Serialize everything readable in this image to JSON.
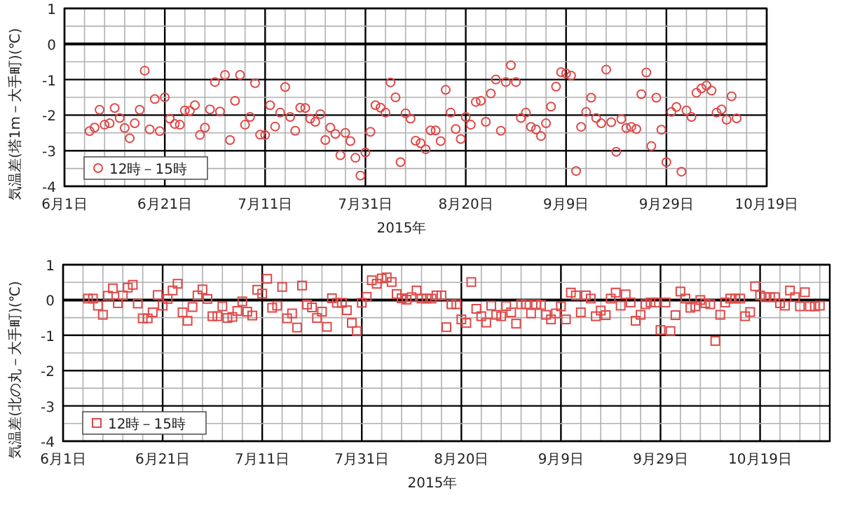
{
  "chart_data": [
    {
      "type": "scatter",
      "xlabel": "2015年",
      "ylabel": "気温差(塔1m－大手町)(℃)",
      "legend": "bottom left",
      "grid": true,
      "marker": "circle",
      "xlim": [
        "2015-06-01",
        "2015-10-19"
      ],
      "xticks": [
        {
          "value": "2015-06-01",
          "label": "6月1日"
        },
        {
          "value": "2015-06-05",
          "label": null
        },
        {
          "value": "2015-06-09",
          "label": null
        },
        {
          "value": "2015-06-13",
          "label": null
        },
        {
          "value": "2015-06-17",
          "label": null
        },
        {
          "value": "2015-06-21",
          "label": "6月21日"
        },
        {
          "value": "2015-06-25",
          "label": null
        },
        {
          "value": "2015-06-29",
          "label": null
        },
        {
          "value": "2015-07-03",
          "label": null
        },
        {
          "value": "2015-07-07",
          "label": null
        },
        {
          "value": "2015-07-11",
          "label": "7月11日"
        },
        {
          "value": "2015-07-15",
          "label": null
        },
        {
          "value": "2015-07-19",
          "label": null
        },
        {
          "value": "2015-07-23",
          "label": null
        },
        {
          "value": "2015-07-27",
          "label": null
        },
        {
          "value": "2015-07-31",
          "label": "7月31日"
        },
        {
          "value": "2015-08-04",
          "label": null
        },
        {
          "value": "2015-08-08",
          "label": null
        },
        {
          "value": "2015-08-12",
          "label": null
        },
        {
          "value": "2015-08-16",
          "label": null
        },
        {
          "value": "2015-08-20",
          "label": "8月20日"
        },
        {
          "value": "2015-08-24",
          "label": null
        },
        {
          "value": "2015-08-28",
          "label": null
        },
        {
          "value": "2015-09-01",
          "label": null
        },
        {
          "value": "2015-09-05",
          "label": null
        },
        {
          "value": "2015-09-09",
          "label": "9月9日"
        },
        {
          "value": "2015-09-13",
          "label": null
        },
        {
          "value": "2015-09-17",
          "label": null
        },
        {
          "value": "2015-09-21",
          "label": null
        },
        {
          "value": "2015-09-25",
          "label": null
        },
        {
          "value": "2015-09-29",
          "label": "9月29日"
        },
        {
          "value": "2015-10-03",
          "label": null
        },
        {
          "value": "2015-10-07",
          "label": null
        },
        {
          "value": "2015-10-11",
          "label": null
        },
        {
          "value": "2015-10-15",
          "label": null
        },
        {
          "value": "2015-10-19",
          "label": "10月19日"
        }
      ],
      "ylim": [
        -4,
        1
      ],
      "yticks": [
        -4,
        {
          "value": -3.5,
          "label": null
        },
        -3,
        {
          "value": -2.5,
          "label": null
        },
        -2,
        {
          "value": -1.5,
          "label": null
        },
        -1,
        {
          "value": -0.5,
          "label": null
        },
        0,
        {
          "value": 0.5,
          "label": null
        },
        1
      ],
      "ref_lines": [
        {
          "axis": "y",
          "value": 0,
          "color": "#000000"
        }
      ],
      "series": [
        {
          "name": "12時－15時",
          "color": "#e04848",
          "x": [
            "2015-06-06",
            "2015-06-07",
            "2015-06-08",
            "2015-06-09",
            "2015-06-10",
            "2015-06-11",
            "2015-06-12",
            "2015-06-13",
            "2015-06-14",
            "2015-06-15",
            "2015-06-16",
            "2015-06-17",
            "2015-06-18",
            "2015-06-19",
            "2015-06-20",
            "2015-06-21",
            "2015-06-22",
            "2015-06-23",
            "2015-06-24",
            "2015-06-25",
            "2015-06-26",
            "2015-06-27",
            "2015-06-28",
            "2015-06-29",
            "2015-06-30",
            "2015-07-01",
            "2015-07-02",
            "2015-07-03",
            "2015-07-04",
            "2015-07-05",
            "2015-07-06",
            "2015-07-07",
            "2015-07-08",
            "2015-07-09",
            "2015-07-10",
            "2015-07-11",
            "2015-07-12",
            "2015-07-13",
            "2015-07-14",
            "2015-07-15",
            "2015-07-16",
            "2015-07-17",
            "2015-07-18",
            "2015-07-19",
            "2015-07-20",
            "2015-07-21",
            "2015-07-22",
            "2015-07-23",
            "2015-07-24",
            "2015-07-25",
            "2015-07-26",
            "2015-07-27",
            "2015-07-28",
            "2015-07-29",
            "2015-07-30",
            "2015-07-31",
            "2015-08-01",
            "2015-08-02",
            "2015-08-03",
            "2015-08-04",
            "2015-08-05",
            "2015-08-06",
            "2015-08-07",
            "2015-08-08",
            "2015-08-09",
            "2015-08-10",
            "2015-08-11",
            "2015-08-12",
            "2015-08-13",
            "2015-08-14",
            "2015-08-15",
            "2015-08-16",
            "2015-08-17",
            "2015-08-18",
            "2015-08-19",
            "2015-08-20",
            "2015-08-21",
            "2015-08-22",
            "2015-08-23",
            "2015-08-24",
            "2015-08-25",
            "2015-08-26",
            "2015-08-27",
            "2015-08-28",
            "2015-08-29",
            "2015-08-30",
            "2015-08-31",
            "2015-09-01",
            "2015-09-02",
            "2015-09-03",
            "2015-09-04",
            "2015-09-05",
            "2015-09-06",
            "2015-09-07",
            "2015-09-08",
            "2015-09-09",
            "2015-09-10",
            "2015-09-11",
            "2015-09-12",
            "2015-09-13",
            "2015-09-14",
            "2015-09-15",
            "2015-09-16",
            "2015-09-17",
            "2015-09-18",
            "2015-09-19",
            "2015-09-20",
            "2015-09-21",
            "2015-09-22",
            "2015-09-23",
            "2015-09-24",
            "2015-09-25",
            "2015-09-26",
            "2015-09-27",
            "2015-09-28",
            "2015-09-29",
            "2015-09-30",
            "2015-10-01",
            "2015-10-02",
            "2015-10-03",
            "2015-10-04",
            "2015-10-05",
            "2015-10-06",
            "2015-10-07",
            "2015-10-08",
            "2015-10-09",
            "2015-10-10",
            "2015-10-11",
            "2015-10-12",
            "2015-10-13"
          ],
          "values": [
            -2.45,
            -2.35,
            -1.85,
            -2.27,
            -2.23,
            -1.8,
            -2.08,
            -2.36,
            -2.65,
            -2.23,
            -1.85,
            -0.75,
            -2.4,
            -1.55,
            -2.45,
            -1.5,
            -2.1,
            -2.25,
            -2.27,
            -1.87,
            -1.88,
            -1.72,
            -2.56,
            -2.35,
            -1.84,
            -1.07,
            -1.9,
            -0.87,
            -2.7,
            -1.6,
            -0.87,
            -2.27,
            -2.05,
            -1.1,
            -2.55,
            -2.56,
            -1.72,
            -2.32,
            -1.93,
            -1.21,
            -2.05,
            -2.44,
            -1.79,
            -1.8,
            -2.1,
            -2.19,
            -1.97,
            -2.7,
            -2.35,
            -2.53,
            -3.13,
            -2.5,
            -2.73,
            -3.2,
            -3.7,
            -3.05,
            -2.47,
            -1.72,
            -1.79,
            -1.93,
            -1.08,
            -1.5,
            -3.32,
            -1.95,
            -2.1,
            -2.72,
            -2.79,
            -2.96,
            -2.43,
            -2.43,
            -2.73,
            -1.29,
            -1.93,
            -2.39,
            -2.67,
            -2.05,
            -2.27,
            -1.63,
            -1.6,
            -2.19,
            -1.39,
            -1.0,
            -2.44,
            -1.07,
            -0.6,
            -1.07,
            -2.08,
            -1.93,
            -2.33,
            -2.4,
            -2.59,
            -2.23,
            -1.76,
            -1.2,
            -0.79,
            -0.83,
            -0.89,
            -3.57,
            -2.33,
            -1.91,
            -1.51,
            -2.08,
            -2.23,
            -0.72,
            -2.2,
            -3.03,
            -2.11,
            -2.36,
            -2.33,
            -2.39,
            -1.41,
            -0.8,
            -2.87,
            -1.51,
            -2.41,
            -3.32,
            -1.91,
            -1.77,
            -3.59,
            -1.87,
            -2.05,
            -1.37,
            -1.25,
            -1.17,
            -1.31,
            -1.93,
            -1.84,
            -2.13,
            -1.47,
            -2.09
          ]
        }
      ]
    },
    {
      "type": "scatter",
      "xlabel": "2015年",
      "ylabel": "気温差(北の丸－大手町)(℃)",
      "legend": "bottom left",
      "grid": true,
      "marker": "square",
      "xlim": [
        "2015-06-01",
        "2015-11-02"
      ],
      "xticks": [
        {
          "value": "2015-06-01",
          "label": "6月1日"
        },
        {
          "value": "2015-06-05",
          "label": null
        },
        {
          "value": "2015-06-09",
          "label": null
        },
        {
          "value": "2015-06-13",
          "label": null
        },
        {
          "value": "2015-06-17",
          "label": null
        },
        {
          "value": "2015-06-21",
          "label": "6月21日"
        },
        {
          "value": "2015-06-25",
          "label": null
        },
        {
          "value": "2015-06-29",
          "label": null
        },
        {
          "value": "2015-07-03",
          "label": null
        },
        {
          "value": "2015-07-07",
          "label": null
        },
        {
          "value": "2015-07-11",
          "label": "7月11日"
        },
        {
          "value": "2015-07-15",
          "label": null
        },
        {
          "value": "2015-07-19",
          "label": null
        },
        {
          "value": "2015-07-23",
          "label": null
        },
        {
          "value": "2015-07-27",
          "label": null
        },
        {
          "value": "2015-07-31",
          "label": "7月31日"
        },
        {
          "value": "2015-08-04",
          "label": null
        },
        {
          "value": "2015-08-08",
          "label": null
        },
        {
          "value": "2015-08-12",
          "label": null
        },
        {
          "value": "2015-08-16",
          "label": null
        },
        {
          "value": "2015-08-20",
          "label": "8月20日"
        },
        {
          "value": "2015-08-24",
          "label": null
        },
        {
          "value": "2015-08-28",
          "label": null
        },
        {
          "value": "2015-09-01",
          "label": null
        },
        {
          "value": "2015-09-05",
          "label": null
        },
        {
          "value": "2015-09-09",
          "label": "9月9日"
        },
        {
          "value": "2015-09-13",
          "label": null
        },
        {
          "value": "2015-09-17",
          "label": null
        },
        {
          "value": "2015-09-21",
          "label": null
        },
        {
          "value": "2015-09-25",
          "label": null
        },
        {
          "value": "2015-09-29",
          "label": "9月29日"
        },
        {
          "value": "2015-10-03",
          "label": null
        },
        {
          "value": "2015-10-07",
          "label": null
        },
        {
          "value": "2015-10-11",
          "label": null
        },
        {
          "value": "2015-10-15",
          "label": null
        },
        {
          "value": "2015-10-19",
          "label": "10月19日"
        },
        {
          "value": "2015-10-23",
          "label": null
        },
        {
          "value": "2015-10-27",
          "label": null
        },
        {
          "value": "2015-10-31",
          "label": null
        }
      ],
      "ylim": [
        -4,
        1
      ],
      "yticks": [
        -4,
        {
          "value": -3.5,
          "label": null
        },
        -3,
        {
          "value": -2.5,
          "label": null
        },
        -2,
        {
          "value": -1.5,
          "label": null
        },
        -1,
        {
          "value": -0.5,
          "label": null
        },
        0,
        {
          "value": 0.5,
          "label": null
        },
        1
      ],
      "ref_lines": [
        {
          "axis": "y",
          "value": 0,
          "color": "#000000"
        }
      ],
      "series": [
        {
          "name": "12時－15時",
          "color": "#e04848",
          "x": [
            "2015-06-06",
            "2015-06-07",
            "2015-06-08",
            "2015-06-09",
            "2015-06-10",
            "2015-06-11",
            "2015-06-12",
            "2015-06-13",
            "2015-06-14",
            "2015-06-15",
            "2015-06-16",
            "2015-06-17",
            "2015-06-18",
            "2015-06-19",
            "2015-06-20",
            "2015-06-21",
            "2015-06-22",
            "2015-06-23",
            "2015-06-24",
            "2015-06-25",
            "2015-06-26",
            "2015-06-27",
            "2015-06-28",
            "2015-06-29",
            "2015-06-30",
            "2015-07-01",
            "2015-07-02",
            "2015-07-03",
            "2015-07-04",
            "2015-07-05",
            "2015-07-06",
            "2015-07-07",
            "2015-07-08",
            "2015-07-09",
            "2015-07-10",
            "2015-07-11",
            "2015-07-12",
            "2015-07-13",
            "2015-07-14",
            "2015-07-15",
            "2015-07-16",
            "2015-07-17",
            "2015-07-18",
            "2015-07-19",
            "2015-07-20",
            "2015-07-21",
            "2015-07-22",
            "2015-07-23",
            "2015-07-24",
            "2015-07-25",
            "2015-07-26",
            "2015-07-27",
            "2015-07-28",
            "2015-07-29",
            "2015-07-30",
            "2015-07-31",
            "2015-08-01",
            "2015-08-02",
            "2015-08-03",
            "2015-08-04",
            "2015-08-05",
            "2015-08-06",
            "2015-08-07",
            "2015-08-08",
            "2015-08-09",
            "2015-08-10",
            "2015-08-11",
            "2015-08-12",
            "2015-08-13",
            "2015-08-14",
            "2015-08-15",
            "2015-08-16",
            "2015-08-17",
            "2015-08-18",
            "2015-08-19",
            "2015-08-20",
            "2015-08-21",
            "2015-08-22",
            "2015-08-23",
            "2015-08-24",
            "2015-08-25",
            "2015-08-26",
            "2015-08-27",
            "2015-08-28",
            "2015-08-29",
            "2015-08-30",
            "2015-08-31",
            "2015-09-01",
            "2015-09-02",
            "2015-09-03",
            "2015-09-04",
            "2015-09-05",
            "2015-09-06",
            "2015-09-07",
            "2015-09-08",
            "2015-09-09",
            "2015-09-10",
            "2015-09-11",
            "2015-09-12",
            "2015-09-13",
            "2015-09-14",
            "2015-09-15",
            "2015-09-16",
            "2015-09-17",
            "2015-09-18",
            "2015-09-19",
            "2015-09-20",
            "2015-09-21",
            "2015-09-22",
            "2015-09-23",
            "2015-09-24",
            "2015-09-25",
            "2015-09-26",
            "2015-09-27",
            "2015-09-28",
            "2015-09-29",
            "2015-09-30",
            "2015-10-01",
            "2015-10-02",
            "2015-10-03",
            "2015-10-04",
            "2015-10-05",
            "2015-10-06",
            "2015-10-07",
            "2015-10-08",
            "2015-10-09",
            "2015-10-10",
            "2015-10-11",
            "2015-10-12",
            "2015-10-13",
            "2015-10-14",
            "2015-10-15",
            "2015-10-16",
            "2015-10-17",
            "2015-10-18",
            "2015-10-19",
            "2015-10-20",
            "2015-10-21",
            "2015-10-22",
            "2015-10-23",
            "2015-10-24",
            "2015-10-25",
            "2015-10-26",
            "2015-10-27",
            "2015-10-28",
            "2015-10-29",
            "2015-10-30",
            "2015-10-31"
          ],
          "values": [
            0.04,
            0.04,
            -0.16,
            -0.42,
            0.12,
            0.33,
            -0.09,
            0.13,
            0.35,
            0.43,
            -0.1,
            -0.52,
            -0.52,
            -0.35,
            0.14,
            -0.16,
            0.03,
            0.27,
            0.46,
            -0.35,
            -0.59,
            -0.2,
            0.13,
            0.3,
            0.03,
            -0.46,
            -0.46,
            -0.18,
            -0.51,
            -0.48,
            -0.31,
            -0.04,
            -0.33,
            -0.44,
            0.29,
            0.18,
            0.6,
            -0.22,
            -0.16,
            0.37,
            -0.52,
            -0.38,
            -0.78,
            0.41,
            -0.13,
            -0.21,
            -0.51,
            -0.33,
            -0.76,
            0.05,
            -0.08,
            -0.08,
            -0.29,
            -0.65,
            -0.88,
            -0.08,
            0.09,
            0.56,
            0.46,
            0.61,
            0.64,
            0.51,
            0.17,
            0.05,
            0.01,
            0.08,
            0.27,
            0.04,
            0.04,
            0.04,
            0.13,
            0.13,
            -0.77,
            -0.12,
            -0.12,
            -0.55,
            -0.65,
            0.51,
            -0.25,
            -0.46,
            -0.64,
            -0.16,
            -0.42,
            -0.46,
            -0.17,
            -0.35,
            -0.67,
            -0.12,
            -0.12,
            -0.38,
            -0.12,
            -0.14,
            -0.42,
            -0.55,
            -0.38,
            -0.18,
            -0.55,
            0.21,
            0.13,
            -0.35,
            0.13,
            0.04,
            -0.46,
            -0.3,
            -0.43,
            0.04,
            0.21,
            -0.16,
            0.16,
            -0.07,
            -0.59,
            -0.42,
            -0.12,
            -0.07,
            -0.07,
            -0.85,
            -0.07,
            -0.88,
            -0.43,
            0.24,
            0.04,
            -0.22,
            -0.18,
            0,
            -0.09,
            -0.12,
            -1.16,
            -0.42,
            -0.07,
            0.04,
            0.04,
            0.04,
            -0.46,
            -0.34,
            0.39,
            0.13,
            0.08,
            0.08,
            0.08,
            -0.09,
            -0.16,
            0.27,
            0.08,
            -0.18,
            0.22,
            -0.18,
            -0.18,
            -0.16
          ]
        }
      ]
    }
  ]
}
